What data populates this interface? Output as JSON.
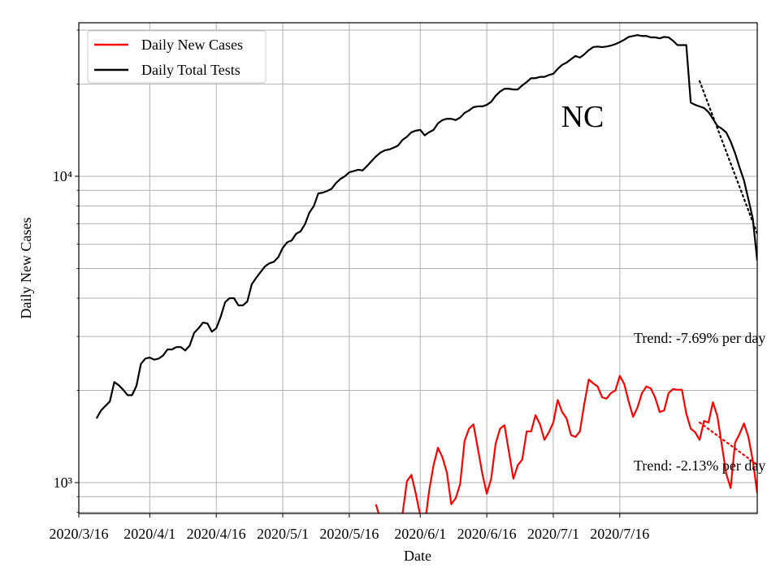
{
  "chart_data": {
    "type": "line",
    "y_label": "Daily New Cases",
    "x_label": "Date",
    "log_y": true,
    "grid": true,
    "legend": "upper-left",
    "annotations": [
      "NC",
      "Trend: -7.69% per day",
      "Trend: -2.13% per day"
    ],
    "xlim": [
      "2020-03-16",
      "2020-08-16"
    ],
    "xticks": [
      {
        "value": "2020-03-16",
        "label": "2020/3/16"
      },
      {
        "value": "2020-04-01",
        "label": "2020/4/1"
      },
      {
        "value": "2020-04-16",
        "label": "2020/4/16"
      },
      {
        "value": "2020-05-01",
        "label": "2020/5/1"
      },
      {
        "value": "2020-05-16",
        "label": "2020/5/16"
      },
      {
        "value": "2020-06-01",
        "label": "2020/6/1"
      },
      {
        "value": "2020-06-16",
        "label": "2020/6/16"
      },
      {
        "value": "2020-07-01",
        "label": "2020/7/1"
      },
      {
        "value": "2020-07-16",
        "label": "2020/7/16"
      }
    ],
    "ylim": [
      793,
      31700
    ],
    "yticks": [
      {
        "value": 1000,
        "label": "10³"
      },
      {
        "value": 10000,
        "label": "10⁴"
      }
    ],
    "yminor_ticks": [
      800,
      900,
      2000,
      3000,
      4000,
      5000,
      6000,
      7000,
      8000,
      9000,
      20000,
      30000
    ],
    "x": [
      "2020-03-20",
      "2020-03-21",
      "2020-03-22",
      "2020-03-23",
      "2020-03-24",
      "2020-03-25",
      "2020-03-26",
      "2020-03-27",
      "2020-03-28",
      "2020-03-29",
      "2020-03-30",
      "2020-03-31",
      "2020-04-01",
      "2020-04-02",
      "2020-04-03",
      "2020-04-04",
      "2020-04-05",
      "2020-04-06",
      "2020-04-07",
      "2020-04-08",
      "2020-04-09",
      "2020-04-10",
      "2020-04-11",
      "2020-04-12",
      "2020-04-13",
      "2020-04-14",
      "2020-04-15",
      "2020-04-16",
      "2020-04-17",
      "2020-04-18",
      "2020-04-19",
      "2020-04-20",
      "2020-04-21",
      "2020-04-22",
      "2020-04-23",
      "2020-04-24",
      "2020-04-25",
      "2020-04-26",
      "2020-04-27",
      "2020-04-28",
      "2020-04-29",
      "2020-04-30",
      "2020-05-01",
      "2020-05-02",
      "2020-05-03",
      "2020-05-04",
      "2020-05-05",
      "2020-05-06",
      "2020-05-07",
      "2020-05-08",
      "2020-05-09",
      "2020-05-10",
      "2020-05-11",
      "2020-05-12",
      "2020-05-13",
      "2020-05-14",
      "2020-05-15",
      "2020-05-16",
      "2020-05-17",
      "2020-05-18",
      "2020-05-19",
      "2020-05-20",
      "2020-05-21",
      "2020-05-22",
      "2020-05-23",
      "2020-05-24",
      "2020-05-25",
      "2020-05-26",
      "2020-05-27",
      "2020-05-28",
      "2020-05-29",
      "2020-05-30",
      "2020-05-31",
      "2020-06-01",
      "2020-06-02",
      "2020-06-03",
      "2020-06-04",
      "2020-06-05",
      "2020-06-06",
      "2020-06-07",
      "2020-06-08",
      "2020-06-09",
      "2020-06-10",
      "2020-06-11",
      "2020-06-12",
      "2020-06-13",
      "2020-06-14",
      "2020-06-15",
      "2020-06-16",
      "2020-06-17",
      "2020-06-18",
      "2020-06-19",
      "2020-06-20",
      "2020-06-21",
      "2020-06-22",
      "2020-06-23",
      "2020-06-24",
      "2020-06-25",
      "2020-06-26",
      "2020-06-27",
      "2020-06-28",
      "2020-06-29",
      "2020-06-30",
      "2020-07-01",
      "2020-07-02",
      "2020-07-03",
      "2020-07-04",
      "2020-07-05",
      "2020-07-06",
      "2020-07-07",
      "2020-07-08",
      "2020-07-09",
      "2020-07-10",
      "2020-07-11",
      "2020-07-12",
      "2020-07-13",
      "2020-07-14",
      "2020-07-15",
      "2020-07-16",
      "2020-07-17",
      "2020-07-18",
      "2020-07-19",
      "2020-07-20",
      "2020-07-21",
      "2020-07-22",
      "2020-07-23",
      "2020-07-24",
      "2020-07-25",
      "2020-07-26",
      "2020-07-27",
      "2020-07-28",
      "2020-07-29",
      "2020-07-30",
      "2020-07-31",
      "2020-08-01",
      "2020-08-02",
      "2020-08-03",
      "2020-08-04",
      "2020-08-05",
      "2020-08-06",
      "2020-08-07",
      "2020-08-08",
      "2020-08-09",
      "2020-08-10",
      "2020-08-11",
      "2020-08-12",
      "2020-08-13",
      "2020-08-14",
      "2020-08-15",
      "2020-08-16"
    ],
    "series": [
      {
        "name": "Daily New Cases",
        "color": "#ff0000",
        "values": [
          null,
          null,
          null,
          null,
          null,
          null,
          null,
          null,
          null,
          null,
          null,
          null,
          null,
          null,
          null,
          null,
          null,
          null,
          null,
          null,
          null,
          null,
          null,
          null,
          null,
          null,
          null,
          null,
          null,
          null,
          null,
          null,
          null,
          null,
          null,
          null,
          null,
          null,
          null,
          null,
          null,
          null,
          null,
          null,
          null,
          null,
          null,
          null,
          null,
          null,
          null,
          null,
          null,
          null,
          null,
          null,
          null,
          null,
          null,
          null,
          null,
          null,
          null,
          850,
          760,
          720,
          700,
          710,
          690,
          790,
          1010,
          1060,
          920,
          780,
          720,
          940,
          1140,
          1300,
          1210,
          1080,
          850,
          890,
          990,
          1370,
          1500,
          1550,
          1290,
          1070,
          920,
          1030,
          1340,
          1500,
          1540,
          1260,
          1030,
          1140,
          1190,
          1470,
          1470,
          1660,
          1550,
          1380,
          1460,
          1570,
          1860,
          1700,
          1620,
          1430,
          1410,
          1470,
          1810,
          2170,
          2110,
          2060,
          1900,
          1880,
          1960,
          2000,
          2230,
          2100,
          1840,
          1640,
          1760,
          1960,
          2060,
          2030,
          1890,
          1700,
          1720,
          1960,
          2020,
          2010,
          2010,
          1680,
          1500,
          1460,
          1380,
          1590,
          1570,
          1830,
          1650,
          1330,
          1070,
          960,
          1350,
          1440,
          1560,
          1410,
          1180,
          925
        ]
      },
      {
        "name": "Daily Total Tests",
        "color": "#000000",
        "values": [
          1620,
          1720,
          1780,
          1840,
          2130,
          2080,
          2010,
          1930,
          1930,
          2070,
          2440,
          2540,
          2560,
          2520,
          2540,
          2600,
          2720,
          2720,
          2770,
          2770,
          2700,
          2800,
          3080,
          3190,
          3330,
          3310,
          3110,
          3190,
          3480,
          3880,
          4000,
          4000,
          3790,
          3790,
          3900,
          4440,
          4660,
          4870,
          5080,
          5200,
          5260,
          5450,
          5840,
          6090,
          6170,
          6490,
          6610,
          6970,
          7610,
          7990,
          8790,
          8840,
          8950,
          9100,
          9500,
          9800,
          10000,
          10300,
          10400,
          10500,
          10450,
          10800,
          11200,
          11600,
          11940,
          12150,
          12230,
          12400,
          12600,
          13140,
          13460,
          13920,
          14090,
          14170,
          13600,
          13920,
          14170,
          14890,
          15250,
          15400,
          15400,
          15250,
          15550,
          16100,
          16400,
          16810,
          16910,
          16910,
          17100,
          17500,
          18300,
          18900,
          19300,
          19300,
          19200,
          19200,
          19800,
          20300,
          20900,
          20900,
          21100,
          21100,
          21400,
          21600,
          22400,
          23100,
          23500,
          24100,
          24700,
          24400,
          25000,
          25800,
          26400,
          26500,
          26400,
          26500,
          26700,
          27000,
          27400,
          27900,
          28500,
          28700,
          28900,
          28700,
          28700,
          28400,
          28400,
          28200,
          28500,
          28400,
          27700,
          26800,
          26800,
          26800,
          17400,
          17100,
          16900,
          16700,
          16200,
          15400,
          14600,
          14300,
          13900,
          13000,
          11900,
          10700,
          9700,
          8420,
          7270,
          5300
        ]
      }
    ],
    "trend_lines": [
      {
        "color": "#000000",
        "x": [
          "2020-08-03",
          "2020-08-16"
        ],
        "values": [
          20450,
          6490
        ]
      },
      {
        "color": "#ff0000",
        "x": [
          "2020-08-03",
          "2020-08-16"
        ],
        "values": [
          1571,
          1144
        ]
      }
    ]
  }
}
